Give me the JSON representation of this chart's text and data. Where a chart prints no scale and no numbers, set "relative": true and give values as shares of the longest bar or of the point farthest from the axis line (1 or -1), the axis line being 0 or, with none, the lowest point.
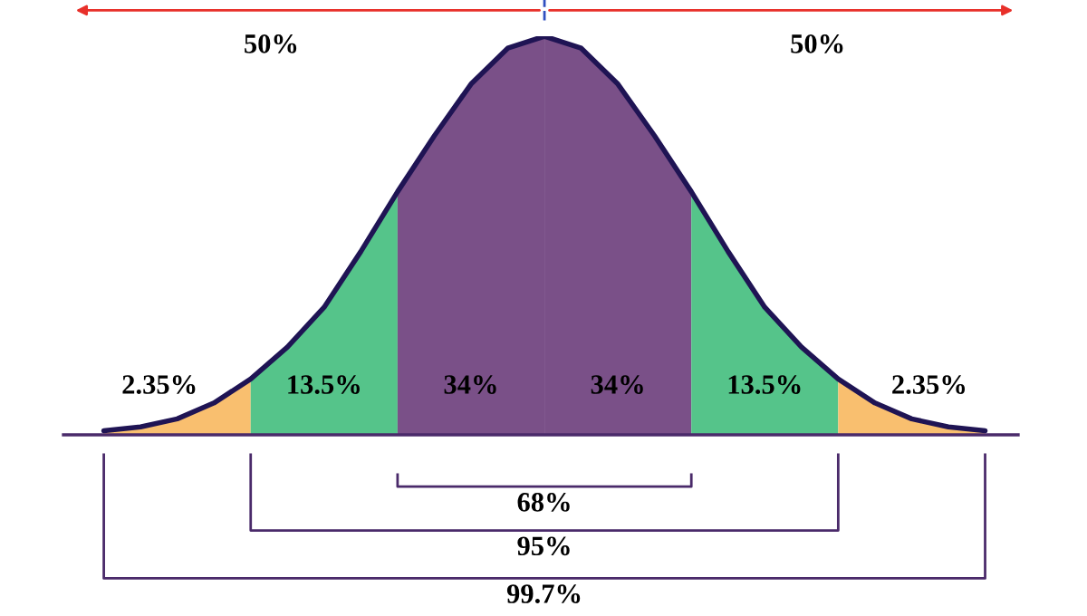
{
  "chart_data": {
    "type": "area",
    "relative": true,
    "categories": [
      null,
      null,
      null,
      null,
      null,
      null,
      null,
      null,
      null,
      null,
      null,
      null,
      null,
      null,
      null,
      null,
      null,
      null,
      null,
      null,
      null,
      null,
      null,
      null,
      null
    ],
    "series": [
      {
        "color": "#f9bf6f",
        "values": [
          0.01,
          0.02,
          0.04,
          0.08,
          0.14,
          null,
          null,
          null,
          null,
          null,
          null,
          null,
          null,
          null,
          null,
          null,
          null,
          null,
          null,
          null,
          null,
          null,
          null,
          null,
          null
        ]
      },
      {
        "color": "#55c48a",
        "values": [
          null,
          null,
          null,
          null,
          0.14,
          0.22,
          0.32,
          0.46,
          0.61,
          null,
          null,
          null,
          null,
          null,
          null,
          null,
          null,
          null,
          null,
          null,
          null,
          null,
          null,
          null,
          null
        ]
      },
      {
        "color": "#7a5088",
        "values": [
          null,
          null,
          null,
          null,
          null,
          null,
          null,
          null,
          0.61,
          0.75,
          0.88,
          0.97,
          1,
          null,
          null,
          null,
          null,
          null,
          null,
          null,
          null,
          null,
          null,
          null,
          null
        ]
      },
      {
        "color": "#7a5088",
        "values": [
          null,
          null,
          null,
          null,
          null,
          null,
          null,
          null,
          null,
          null,
          null,
          null,
          1,
          0.97,
          0.88,
          0.75,
          0.61,
          null,
          null,
          null,
          null,
          null,
          null,
          null,
          null
        ]
      },
      {
        "color": "#55c48a",
        "values": [
          null,
          null,
          null,
          null,
          null,
          null,
          null,
          null,
          null,
          null,
          null,
          null,
          null,
          null,
          null,
          null,
          0.61,
          0.46,
          0.32,
          0.22,
          0.14,
          null,
          null,
          null,
          null
        ]
      },
      {
        "color": "#f9bf6f",
        "values": [
          null,
          null,
          null,
          null,
          null,
          null,
          null,
          null,
          null,
          null,
          null,
          null,
          null,
          null,
          null,
          null,
          null,
          null,
          null,
          null,
          0.14,
          0.08,
          0.04,
          0.02,
          0.01
        ]
      },
      {
        "type": "line",
        "color": "#1f1454",
        "values": [
          0.01,
          0.02,
          0.04,
          0.08,
          0.14,
          0.22,
          0.32,
          0.46,
          0.61,
          0.75,
          0.88,
          0.97,
          1,
          0.97,
          0.88,
          0.75,
          0.61,
          0.46,
          0.32,
          0.22,
          0.14,
          0.08,
          0.04,
          0.02,
          0.01
        ]
      }
    ],
    "annotations": [
      "50%",
      "50%",
      "2.35%",
      "13.5%",
      "34%",
      "34%",
      "13.5%",
      "2.35%",
      "68%",
      "95%",
      "99.7%"
    ],
    "legend": false
  }
}
